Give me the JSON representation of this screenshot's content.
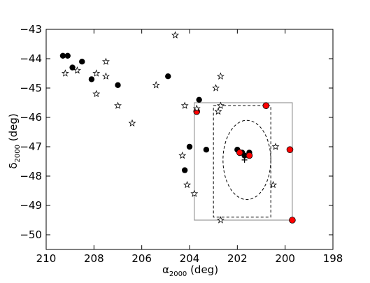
{
  "chart_data": {
    "type": "scatter",
    "xlabel": "α",
    "xlabel_sub": "2000",
    "xlabel_unit": " (deg)",
    "ylabel": "δ",
    "ylabel_sub": "2000",
    "ylabel_unit": " (deg)",
    "xlim": [
      210,
      198
    ],
    "ylim": [
      -50.5,
      -43
    ],
    "x_ticks": [
      210,
      208,
      206,
      204,
      202,
      200,
      198
    ],
    "y_ticks": [
      -43,
      -44,
      -45,
      -46,
      -47,
      -48,
      -49,
      -50
    ],
    "x_tick_labels": [
      "210",
      "208",
      "206",
      "204",
      "202",
      "200",
      "198"
    ],
    "y_tick_labels": [
      "−43",
      "−44",
      "−45",
      "−46",
      "−47",
      "−48",
      "−49",
      "−50"
    ],
    "grid": false,
    "colors": {
      "black_points": "#000000",
      "red_points": "#ff0000",
      "star_edge": "#000000",
      "solid_box": "#999999",
      "dashed": "#000000"
    },
    "series": [
      {
        "marker": "circle-black",
        "points": [
          [
            209.3,
            -43.9
          ],
          [
            209.1,
            -43.9
          ],
          [
            208.9,
            -44.3
          ],
          [
            208.5,
            -44.1
          ],
          [
            208.1,
            -44.7
          ],
          [
            207.0,
            -44.9
          ],
          [
            204.9,
            -44.6
          ],
          [
            203.6,
            -45.4
          ],
          [
            203.3,
            -47.1
          ],
          [
            204.0,
            -47.0
          ],
          [
            204.2,
            -47.8
          ],
          [
            202.0,
            -47.1
          ],
          [
            201.8,
            -47.2
          ],
          [
            201.5,
            -47.2
          ],
          [
            201.7,
            -47.3
          ]
        ]
      },
      {
        "marker": "circle-red",
        "points": [
          [
            203.7,
            -45.8
          ],
          [
            200.8,
            -45.6
          ],
          [
            199.8,
            -47.1
          ],
          [
            199.7,
            -49.5
          ],
          [
            201.9,
            -47.2
          ],
          [
            201.5,
            -47.3
          ]
        ]
      },
      {
        "marker": "star-open",
        "points": [
          [
            209.2,
            -44.5
          ],
          [
            208.7,
            -44.4
          ],
          [
            207.5,
            -44.1
          ],
          [
            207.9,
            -44.5
          ],
          [
            207.5,
            -44.6
          ],
          [
            207.9,
            -45.2
          ],
          [
            207.0,
            -45.6
          ],
          [
            206.4,
            -46.2
          ],
          [
            205.4,
            -44.9
          ],
          [
            204.6,
            -43.2
          ],
          [
            204.2,
            -45.6
          ],
          [
            203.7,
            -45.7
          ],
          [
            202.9,
            -45.0
          ],
          [
            202.7,
            -44.6
          ],
          [
            202.8,
            -45.8
          ],
          [
            202.7,
            -45.6
          ],
          [
            204.3,
            -47.3
          ],
          [
            204.1,
            -48.3
          ],
          [
            203.8,
            -48.6
          ],
          [
            200.4,
            -47.0
          ],
          [
            200.5,
            -48.3
          ],
          [
            202.7,
            -49.5
          ]
        ]
      }
    ],
    "annotations": {
      "cross": [
        201.7,
        -47.45
      ],
      "solid_rectangle": {
        "x": [
          203.8,
          199.7
        ],
        "y": [
          -45.5,
          -49.5
        ]
      },
      "dashed_rectangle": {
        "x": [
          203.0,
          200.6
        ],
        "y": [
          -45.6,
          -49.4
        ]
      },
      "dashed_ellipse": {
        "center": [
          201.6,
          -47.45
        ],
        "rx": 1.0,
        "ry": 1.35
      }
    }
  }
}
